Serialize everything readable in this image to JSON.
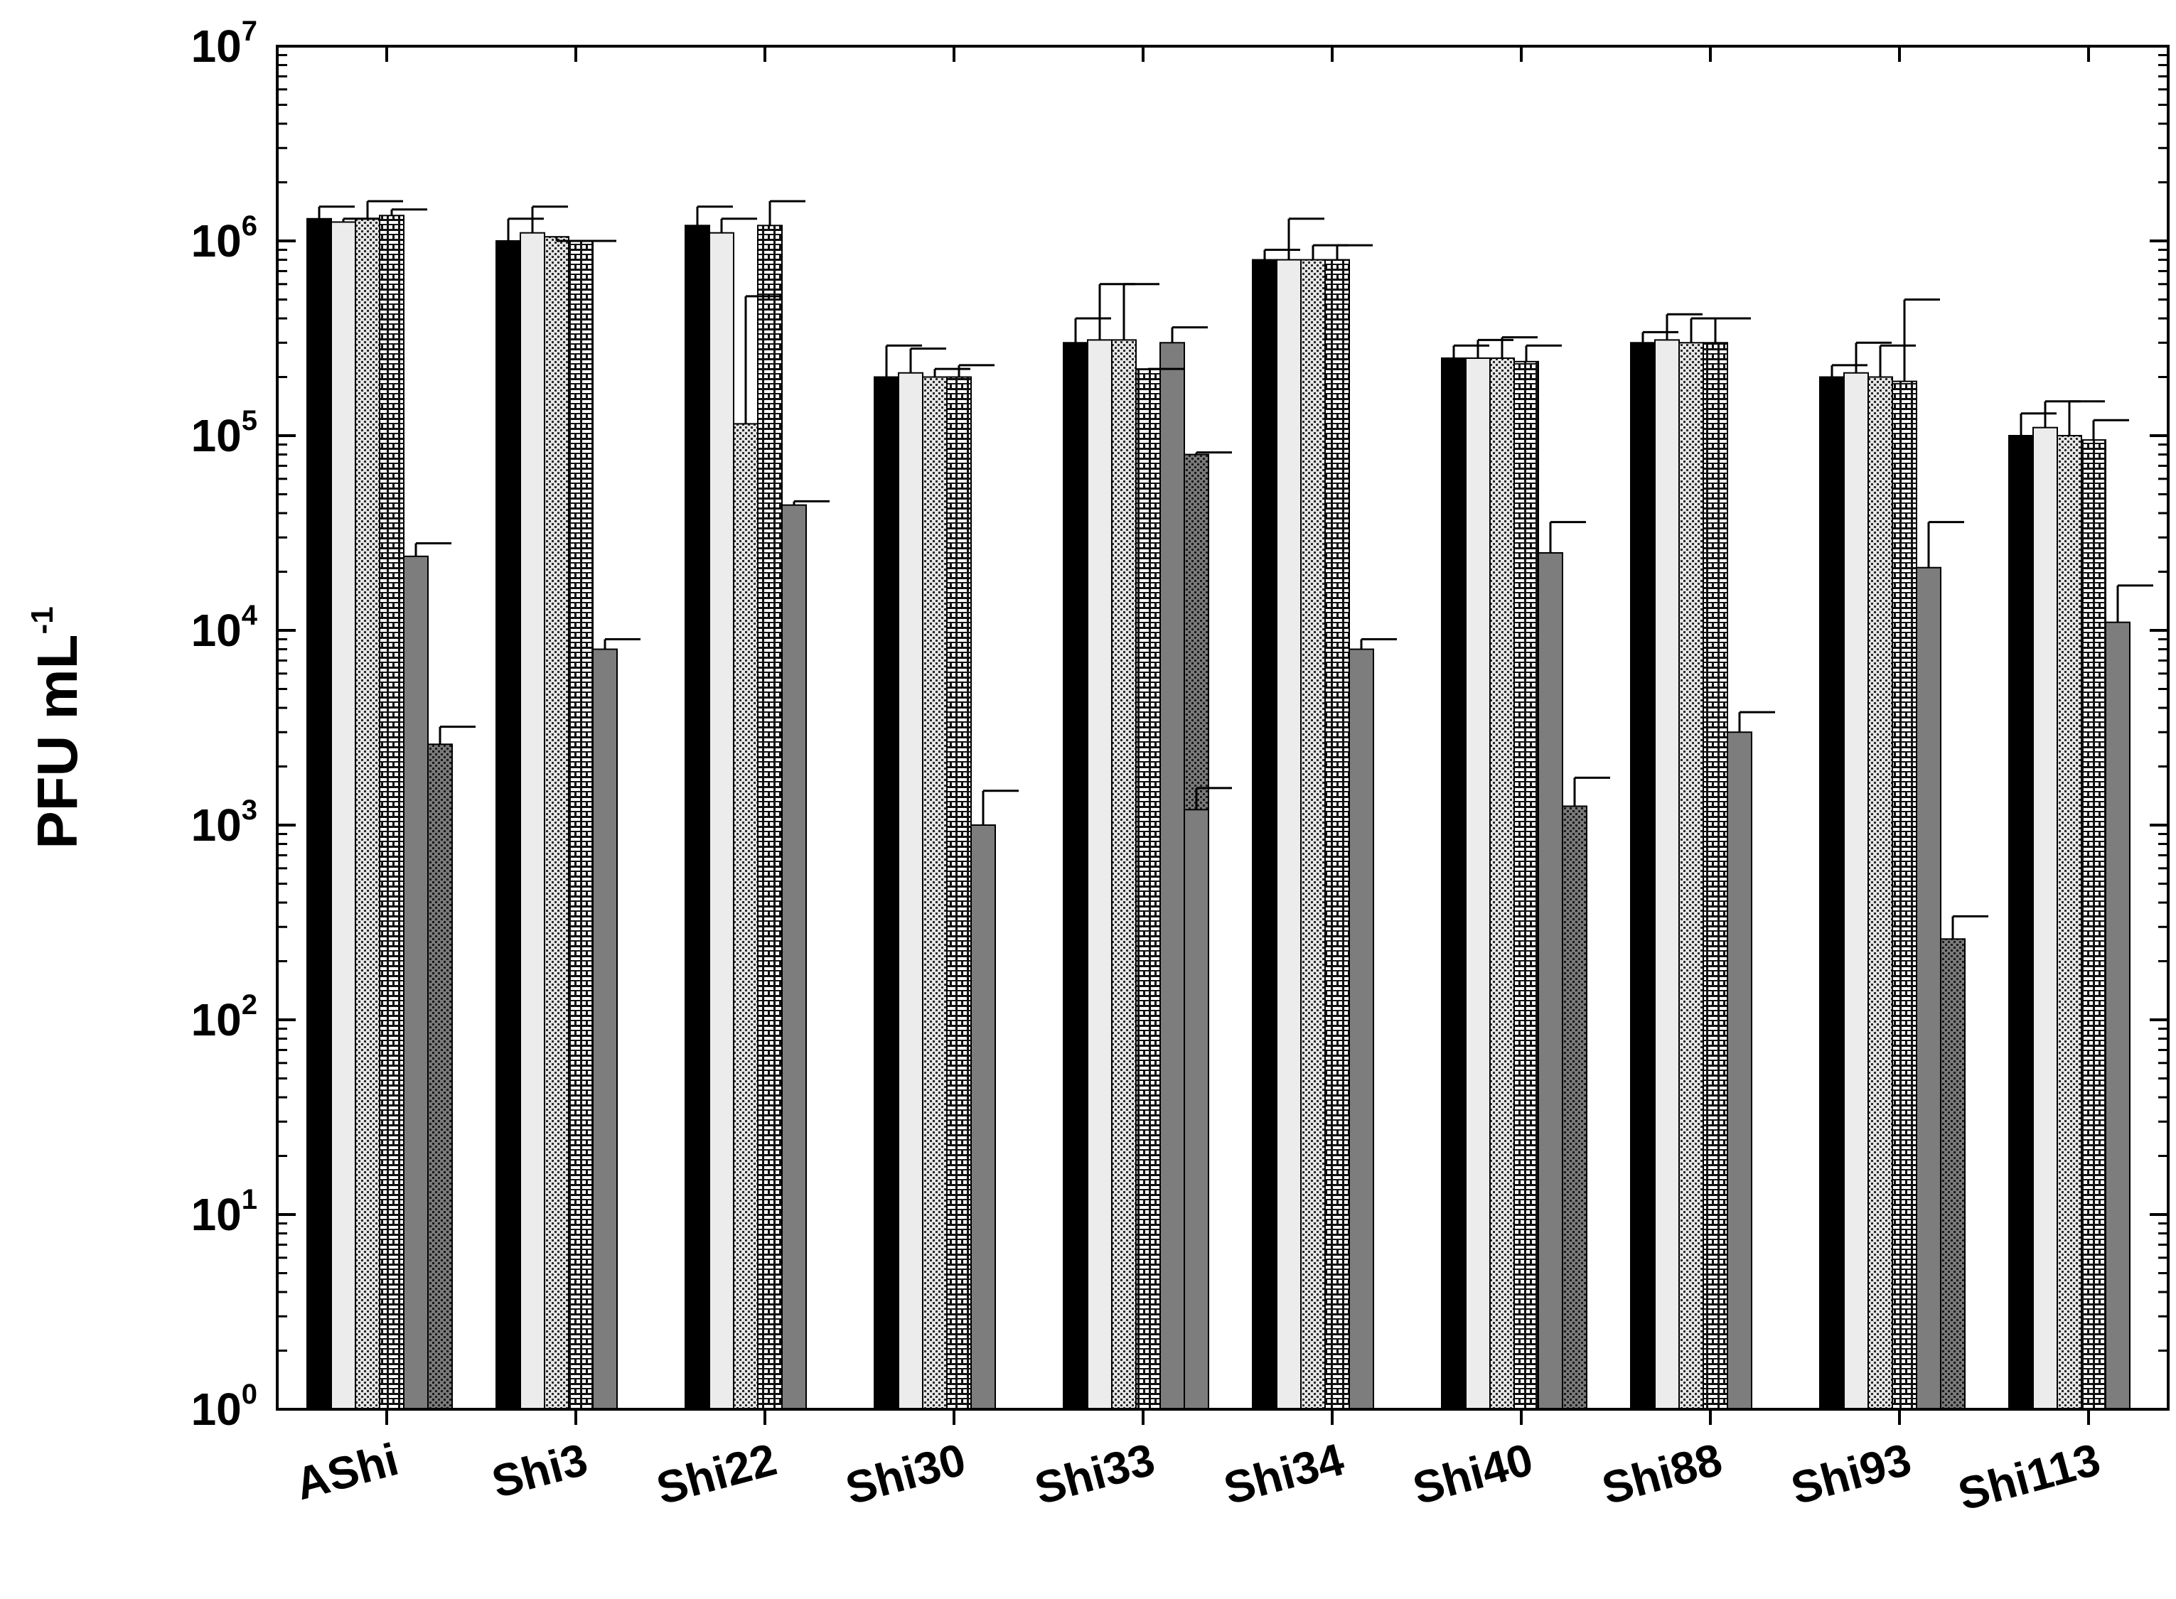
{
  "chart_data": {
    "type": "bar",
    "ylabel": "PFU mL",
    "ylabel_superscript": "-1",
    "yscale": "log",
    "ylim": [
      1,
      10000000
    ],
    "ytick_labels": [
      {
        "base": "10",
        "exp": "0"
      },
      {
        "base": "10",
        "exp": "1"
      },
      {
        "base": "10",
        "exp": "2"
      },
      {
        "base": "10",
        "exp": "3"
      },
      {
        "base": "10",
        "exp": "4"
      },
      {
        "base": "10",
        "exp": "5"
      },
      {
        "base": "10",
        "exp": "6"
      },
      {
        "base": "10",
        "exp": "7"
      }
    ],
    "categories": [
      "AShi",
      "Shi3",
      "Shi22",
      "Shi30",
      "Shi33",
      "Shi34",
      "Shi40",
      "Shi88",
      "Shi93",
      "Shi113"
    ],
    "series": [
      {
        "fill": "solid-black",
        "values": [
          1300000,
          1000000,
          1200000,
          200000,
          300000,
          800000,
          250000,
          300000,
          200000,
          100000
        ],
        "err": [
          1500000,
          1300000,
          1500000,
          290000,
          400000,
          900000,
          290000,
          340000,
          230000,
          130000
        ]
      },
      {
        "fill": "light-gray",
        "values": [
          1250000,
          1100000,
          1100000,
          210000,
          310000,
          800000,
          250000,
          310000,
          210000,
          110000
        ],
        "err": [
          1300000,
          1500000,
          1300000,
          280000,
          600000,
          1300000,
          310000,
          420000,
          300000,
          150000
        ]
      },
      {
        "fill": "dotted",
        "values": [
          1300000,
          1050000,
          115000,
          200000,
          310000,
          800000,
          250000,
          300000,
          200000,
          100000
        ],
        "err": [
          1600000,
          1000000,
          520000,
          220000,
          600000,
          950000,
          320000,
          400000,
          290000,
          150000
        ]
      },
      {
        "fill": "brick",
        "values": [
          1350000,
          1000000,
          1200000,
          200000,
          220000,
          800000,
          240000,
          300000,
          190000,
          95000
        ],
        "err": [
          1450000,
          1000000,
          1600000,
          230000,
          220000,
          950000,
          290000,
          400000,
          500000,
          120000
        ]
      },
      {
        "fill": "gray-solid",
        "values": [
          24000,
          8000,
          44000,
          1000,
          300000,
          8000,
          25000,
          3000,
          21000,
          11000
        ],
        "err": [
          28000,
          9000,
          46000,
          1500,
          360000,
          9000,
          36000,
          3800,
          36000,
          17000
        ]
      },
      {
        "fill": "dark-dotted",
        "values": [
          2600,
          null,
          null,
          null,
          80000,
          null,
          1250,
          null,
          260,
          null
        ],
        "err": [
          3200,
          null,
          null,
          null,
          82000,
          null,
          1750,
          null,
          340,
          null
        ]
      },
      {
        "fill": "gray-solid",
        "values": [
          null,
          null,
          null,
          null,
          1200,
          null,
          null,
          null,
          null,
          null
        ],
        "err": [
          null,
          null,
          null,
          null,
          1550,
          null,
          null,
          null,
          null,
          null
        ]
      }
    ],
    "grid": false,
    "legend": "none"
  }
}
